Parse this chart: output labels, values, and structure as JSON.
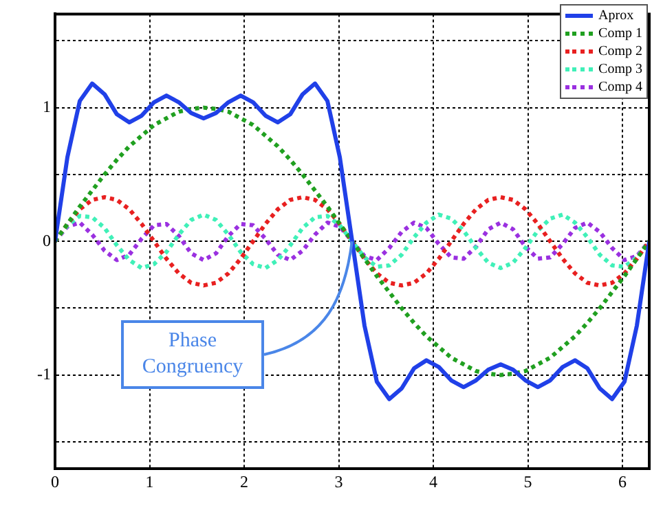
{
  "chart_data": {
    "type": "line",
    "x": [
      0,
      0.131,
      0.262,
      0.393,
      0.524,
      0.654,
      0.785,
      0.916,
      1.047,
      1.178,
      1.309,
      1.44,
      1.571,
      1.702,
      1.833,
      1.963,
      2.094,
      2.225,
      2.356,
      2.487,
      2.618,
      2.749,
      2.88,
      3.011,
      3.142,
      3.272,
      3.403,
      3.534,
      3.665,
      3.796,
      3.927,
      4.058,
      4.189,
      4.32,
      4.451,
      4.581,
      4.712,
      4.843,
      4.974,
      5.105,
      5.236,
      5.367,
      5.498,
      5.629,
      5.76,
      5.89,
      6.021,
      6.152,
      6.283
    ],
    "series": [
      {
        "name": "Aprox",
        "color": "#2040e8",
        "line_style": "solid",
        "values": [
          0,
          0.63,
          1.05,
          1.18,
          1.1,
          0.95,
          0.89,
          0.94,
          1.04,
          1.09,
          1.04,
          0.96,
          0.92,
          0.96,
          1.04,
          1.09,
          1.04,
          0.94,
          0.89,
          0.95,
          1.1,
          1.18,
          1.05,
          0.63,
          0,
          -0.63,
          -1.05,
          -1.18,
          -1.1,
          -0.95,
          -0.89,
          -0.94,
          -1.04,
          -1.09,
          -1.04,
          -0.96,
          -0.92,
          -0.96,
          -1.04,
          -1.09,
          -1.04,
          -0.94,
          -0.89,
          -0.95,
          -1.1,
          -1.18,
          -1.05,
          -0.63,
          0
        ]
      },
      {
        "name": "Comp 1",
        "color": "#20a020",
        "line_style": "dotted",
        "values": [
          0,
          0.13,
          0.26,
          0.38,
          0.5,
          0.61,
          0.71,
          0.79,
          0.87,
          0.92,
          0.97,
          0.99,
          1,
          0.99,
          0.97,
          0.92,
          0.87,
          0.79,
          0.71,
          0.61,
          0.5,
          0.38,
          0.26,
          0.13,
          0,
          -0.13,
          -0.26,
          -0.38,
          -0.5,
          -0.61,
          -0.71,
          -0.79,
          -0.87,
          -0.92,
          -0.97,
          -0.99,
          -1,
          -0.99,
          -0.97,
          -0.92,
          -0.87,
          -0.79,
          -0.71,
          -0.61,
          -0.5,
          -0.38,
          -0.26,
          -0.13,
          0
        ]
      },
      {
        "name": "Comp 2",
        "color": "#e82020",
        "line_style": "dotted",
        "values": [
          0,
          0.13,
          0.24,
          0.31,
          0.33,
          0.31,
          0.24,
          0.13,
          0,
          -0.13,
          -0.24,
          -0.31,
          -0.33,
          -0.31,
          -0.24,
          -0.13,
          0,
          0.13,
          0.24,
          0.31,
          0.33,
          0.31,
          0.24,
          0.13,
          0,
          -0.13,
          -0.24,
          -0.31,
          -0.33,
          -0.31,
          -0.24,
          -0.13,
          0,
          0.13,
          0.24,
          0.31,
          0.33,
          0.31,
          0.24,
          0.13,
          0,
          -0.13,
          -0.24,
          -0.31,
          -0.33,
          -0.31,
          -0.24,
          -0.13,
          0
        ]
      },
      {
        "name": "Comp 3",
        "color": "#40f0b8",
        "line_style": "dotted",
        "values": [
          0,
          0.12,
          0.19,
          0.18,
          0.1,
          -0.03,
          -0.14,
          -0.2,
          -0.17,
          -0.08,
          0.05,
          0.16,
          0.2,
          0.16,
          0.05,
          -0.08,
          -0.17,
          -0.2,
          -0.14,
          -0.03,
          0.1,
          0.18,
          0.19,
          0.12,
          0,
          -0.12,
          -0.19,
          -0.18,
          -0.1,
          0.03,
          0.14,
          0.2,
          0.17,
          0.08,
          -0.05,
          -0.16,
          -0.2,
          -0.16,
          -0.05,
          0.08,
          0.17,
          0.2,
          0.14,
          0.03,
          -0.1,
          -0.18,
          -0.19,
          -0.12,
          0
        ]
      },
      {
        "name": "Comp 4",
        "color": "#9a30e0",
        "line_style": "dotted",
        "values": [
          0,
          0.11,
          0.14,
          0.05,
          -0.07,
          -0.14,
          -0.1,
          0.02,
          0.12,
          0.13,
          0.04,
          -0.09,
          -0.14,
          -0.09,
          0.04,
          0.13,
          0.12,
          0.02,
          -0.1,
          -0.14,
          -0.07,
          0.05,
          0.14,
          0.11,
          0,
          -0.11,
          -0.14,
          -0.05,
          0.07,
          0.14,
          0.1,
          -0.02,
          -0.12,
          -0.13,
          -0.04,
          0.09,
          0.14,
          0.09,
          -0.04,
          -0.13,
          -0.12,
          -0.02,
          0.1,
          0.14,
          0.07,
          -0.05,
          -0.14,
          -0.11,
          0
        ]
      }
    ],
    "xlim": [
      0,
      6.283
    ],
    "xticks": [
      0,
      1,
      2,
      3,
      4,
      5,
      6
    ],
    "ylim": [
      -1.7,
      1.7
    ],
    "yticks": [
      {
        "value": -1.5,
        "label": null
      },
      -1,
      {
        "value": -0.5,
        "label": null
      },
      0,
      {
        "value": 0.5,
        "label": null
      },
      1,
      {
        "value": 1.5,
        "label": null
      }
    ],
    "grid": true,
    "legend": "top right",
    "marker": "none",
    "annotations": [
      {
        "text": "Phase Congruency",
        "x": 3.14,
        "y": 0
      }
    ]
  }
}
